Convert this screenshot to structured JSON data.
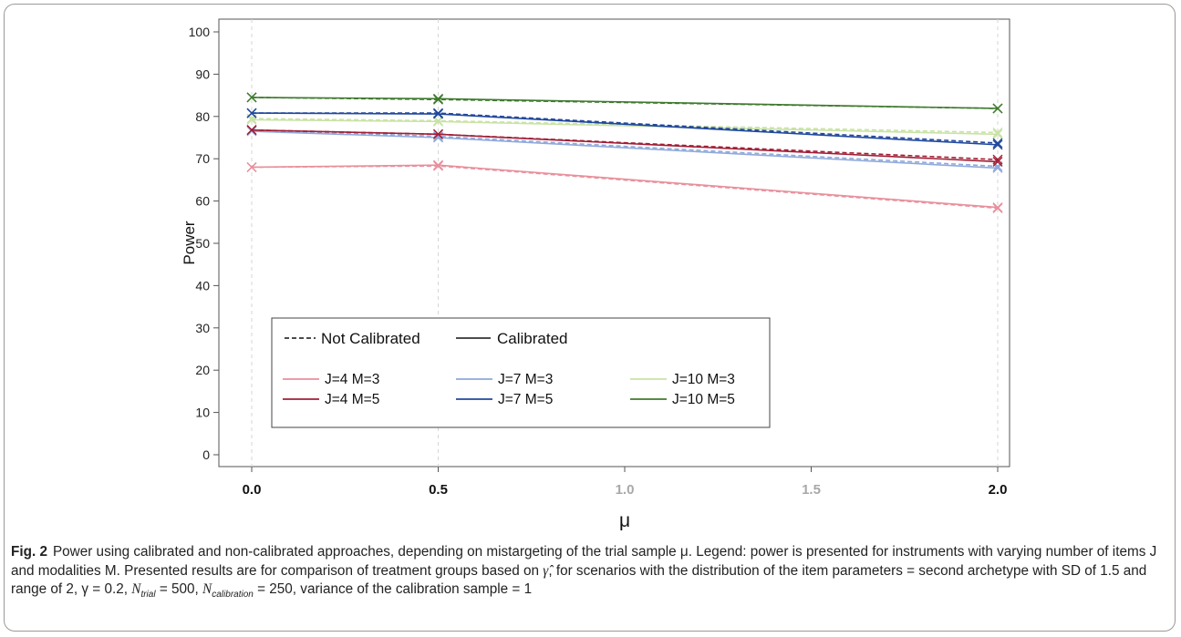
{
  "chart_data": {
    "type": "line",
    "ylabel": "Power",
    "xlabel": "μ",
    "ylim": [
      0,
      100
    ],
    "xlim": [
      0,
      2
    ],
    "yticks": [
      0,
      10,
      20,
      30,
      40,
      50,
      60,
      70,
      80,
      90,
      100
    ],
    "xticks": [
      {
        "value": 0.0,
        "label": "0.0",
        "emphasized": true
      },
      {
        "value": 0.5,
        "label": "0.5",
        "emphasized": true
      },
      {
        "value": 1.0,
        "label": "1.0",
        "emphasized": false
      },
      {
        "value": 1.5,
        "label": "1.5",
        "emphasized": false
      },
      {
        "value": 2.0,
        "label": "2.0",
        "emphasized": true
      }
    ],
    "x": [
      0.0,
      0.5,
      2.0
    ],
    "linestyle_legend": {
      "dashed": "Not Calibrated",
      "solid": "Calibrated"
    },
    "series": [
      {
        "name": "J=4 M=3",
        "color": "#e8909c",
        "calibrated": [
          68.0,
          68.5,
          58.5
        ],
        "not_calibrated": [
          68.0,
          68.3,
          58.3
        ]
      },
      {
        "name": "J=7 M=3",
        "color": "#8fa9dc",
        "calibrated": [
          76.5,
          75.0,
          67.8
        ],
        "not_calibrated": [
          76.8,
          75.3,
          68.2
        ]
      },
      {
        "name": "J=10 M=3",
        "color": "#c9e3a5",
        "calibrated": [
          79.2,
          78.8,
          75.8
        ],
        "not_calibrated": [
          79.5,
          79.0,
          76.2
        ]
      },
      {
        "name": "J=4 M=5",
        "color": "#a01e35",
        "calibrated": [
          76.8,
          75.8,
          69.3
        ],
        "not_calibrated": [
          76.8,
          75.8,
          69.8
        ]
      },
      {
        "name": "J=7 M=5",
        "color": "#20489c",
        "calibrated": [
          80.8,
          80.6,
          73.3
        ],
        "not_calibrated": [
          80.8,
          80.8,
          73.7
        ]
      },
      {
        "name": "J=10 M=5",
        "color": "#3e7a2e",
        "calibrated": [
          84.5,
          84.2,
          81.9
        ],
        "not_calibrated": [
          84.5,
          84.0,
          81.9
        ]
      }
    ],
    "legend_position": "bottom-left inside plot",
    "grid": "vertical dashed reference lines at x = 0.0, 0.5, 2.0"
  },
  "caption": {
    "fig_label": "Fig. 2",
    "part1": "Power using calibrated and non-calibrated approaches, depending on mistargeting of the trial sample μ. Legend: power is presented for instruments with varying number of items J and modalities M. Presented results are for comparison of treatment groups based on ",
    "gamma_hat": "γ̂",
    "part2": ", for scenarios with the distribution of the item parameters = second archetype with SD of 1.5 and range of 2, γ = 0.2, ",
    "n_symbol": "N",
    "trial_sub": "trial",
    "trial_val": " = 500, ",
    "calib_sub": "calibration",
    "calib_val": " = 250, variance of the calibration sample = 1"
  }
}
